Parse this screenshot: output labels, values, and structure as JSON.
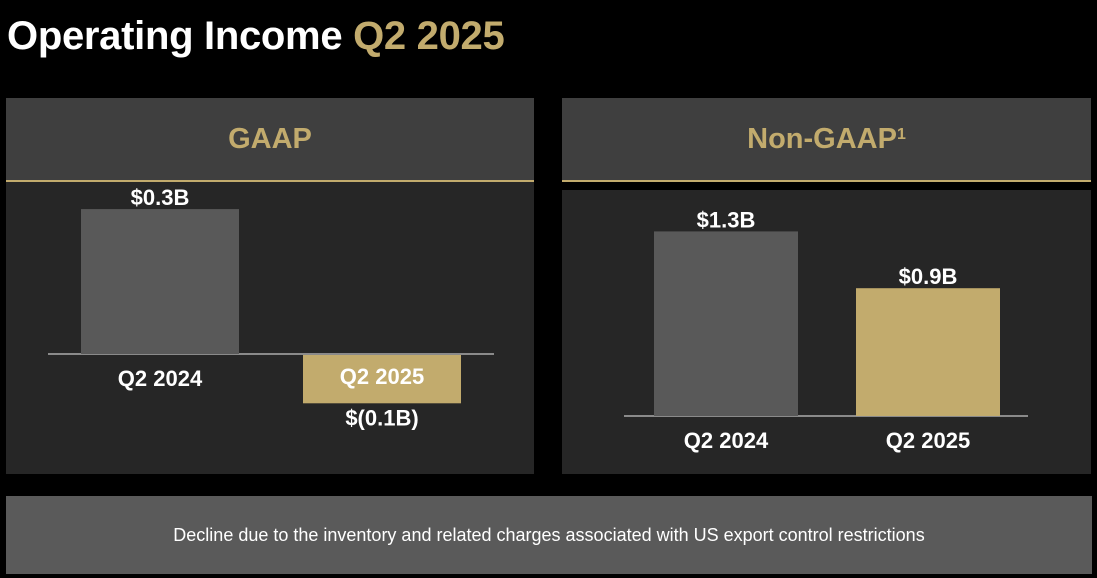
{
  "title": {
    "main": "Operating Income",
    "accent": "Q2 2025"
  },
  "colors": {
    "background": "#000000",
    "accent_gold": "#c2ab6d",
    "bar_gray": "#595959",
    "panel": "#262626",
    "panel_header": "#3f3f3f",
    "footer": "#5a5a5a"
  },
  "gaap": {
    "header": "GAAP"
  },
  "nongaap": {
    "header": "Non-GAAP",
    "footnote": "1"
  },
  "footer": {
    "text": "Decline due to the inventory and related charges associated with US export control restrictions"
  },
  "chart_data": [
    {
      "type": "bar",
      "title": "GAAP",
      "unit": "$B",
      "categories": [
        "Q2 2024",
        "Q2 2025"
      ],
      "values": [
        0.3,
        -0.1
      ],
      "data_labels": [
        "$0.3B",
        "$(0.1B)"
      ],
      "bar_colors": [
        "#595959",
        "#c2ab6d"
      ]
    },
    {
      "type": "bar",
      "title": "Non-GAAP",
      "unit": "$B",
      "categories": [
        "Q2 2024",
        "Q2 2025"
      ],
      "values": [
        1.3,
        0.9
      ],
      "data_labels": [
        "$1.3B",
        "$0.9B"
      ],
      "bar_colors": [
        "#595959",
        "#c2ab6d"
      ]
    }
  ]
}
